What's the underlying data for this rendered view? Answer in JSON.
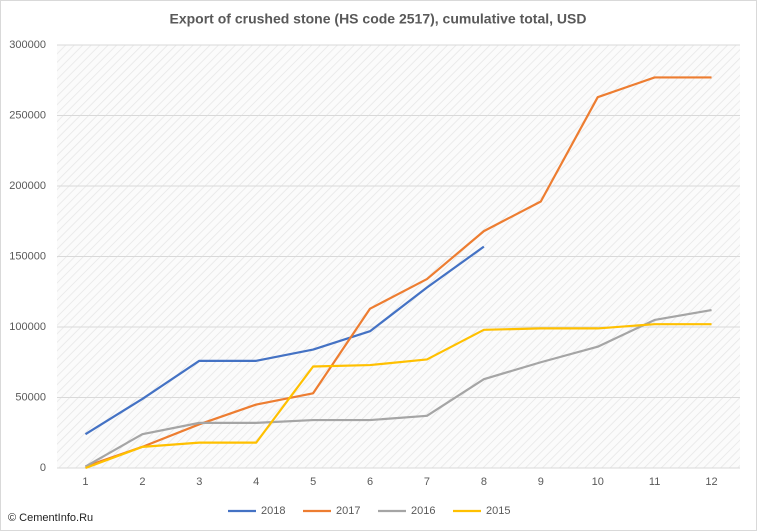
{
  "chart_data": {
    "type": "line",
    "title": "Export of crushed stone (HS code 2517), cumulative total, USD",
    "categories": [
      "1",
      "2",
      "3",
      "4",
      "5",
      "6",
      "7",
      "8",
      "9",
      "10",
      "11",
      "12"
    ],
    "series": [
      {
        "name": "2018",
        "color": "#4472c4",
        "values": [
          24000,
          49000,
          76000,
          76000,
          84000,
          97000,
          128000,
          157000,
          null,
          null,
          null,
          null
        ]
      },
      {
        "name": "2017",
        "color": "#ed7d31",
        "values": [
          1000,
          15000,
          31000,
          45000,
          53000,
          113000,
          134000,
          168000,
          189000,
          263000,
          277000,
          277000
        ]
      },
      {
        "name": "2016",
        "color": "#a5a5a5",
        "values": [
          1000,
          24000,
          32000,
          32000,
          34000,
          34000,
          37000,
          63000,
          75000,
          86000,
          105000,
          112000
        ]
      },
      {
        "name": "2015",
        "color": "#ffc000",
        "values": [
          0,
          15000,
          18000,
          18000,
          72000,
          73000,
          77000,
          98000,
          99000,
          99000,
          102000,
          102000
        ]
      }
    ],
    "ylim": [
      0,
      300000
    ],
    "yticks": [
      0,
      50000,
      100000,
      150000,
      200000,
      250000,
      300000
    ],
    "grid": true,
    "legend": "bottom",
    "watermark": "© CementInfo.Ru"
  }
}
